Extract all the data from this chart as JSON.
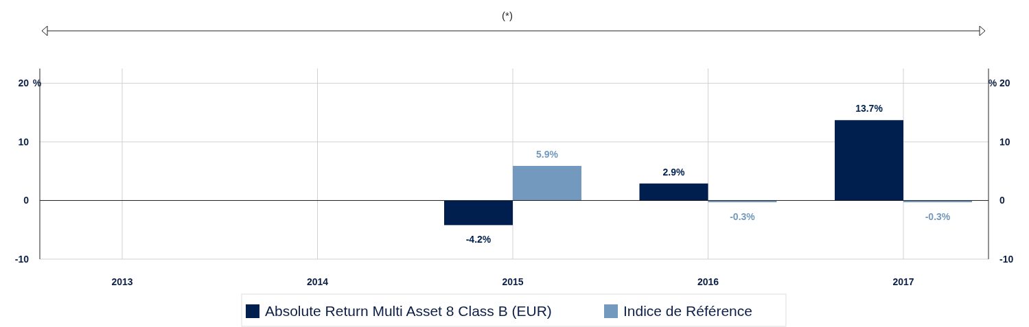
{
  "chart_data": {
    "type": "bar",
    "annotations": [
      "(*)"
    ],
    "ylabel": "%",
    "y2label": "%",
    "categories": [
      "2013",
      "2014",
      "2015",
      "2016",
      "2017"
    ],
    "series": [
      {
        "name": "Absolute Return Multi Asset 8 Class B (EUR)",
        "color": "#001f4e",
        "values": [
          null,
          null,
          -4.2,
          2.9,
          13.7
        ],
        "value_labels": [
          null,
          null,
          "-4.2%",
          "2.9%",
          "13.7%"
        ]
      },
      {
        "name": "Indice de Référence",
        "color": "#7399be",
        "values": [
          null,
          null,
          5.9,
          -0.3,
          -0.3
        ],
        "value_labels": [
          null,
          null,
          "5.9%",
          "-0.3%",
          "-0.3%"
        ]
      }
    ],
    "ylim": [
      -10,
      22.5
    ],
    "yticks": [
      -10,
      0,
      10,
      20
    ],
    "y2lim": [
      -10,
      22.5
    ],
    "y2ticks": [
      -10,
      0,
      10,
      20
    ],
    "grid": true,
    "legend": "bottom"
  }
}
